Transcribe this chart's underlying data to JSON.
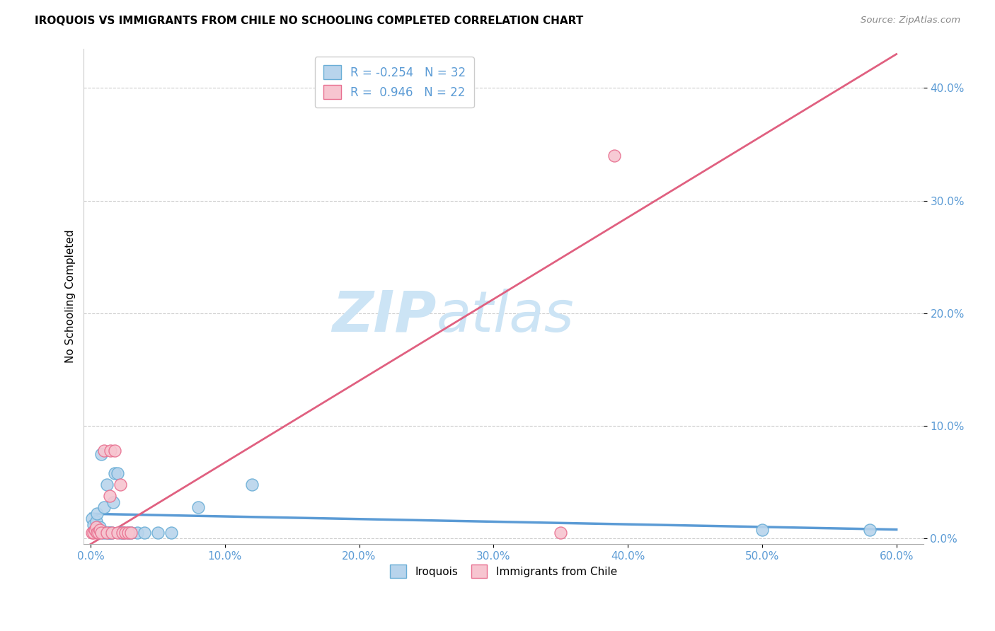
{
  "title": "IROQUOIS VS IMMIGRANTS FROM CHILE NO SCHOOLING COMPLETED CORRELATION CHART",
  "source": "Source: ZipAtlas.com",
  "ylabel": "No Schooling Completed",
  "xlim": [
    -0.005,
    0.62
  ],
  "ylim": [
    -0.005,
    0.435
  ],
  "xticks": [
    0.0,
    0.1,
    0.2,
    0.3,
    0.4,
    0.5,
    0.6
  ],
  "yticks": [
    0.0,
    0.1,
    0.2,
    0.3,
    0.4
  ],
  "legend_r1": "R = -0.254",
  "legend_n1": "N = 32",
  "legend_r2": "R =  0.946",
  "legend_n2": "N = 22",
  "blue_fill": "#b8d4ec",
  "blue_edge": "#6aaed6",
  "pink_fill": "#f7c5d0",
  "pink_edge": "#e87090",
  "blue_line": "#5b9bd5",
  "pink_line": "#e06080",
  "tick_color": "#5b9bd5",
  "grid_color": "#cccccc",
  "watermark_color": "#cce4f5",
  "iroquois_x": [
    0.001,
    0.002,
    0.003,
    0.004,
    0.005,
    0.006,
    0.007,
    0.008,
    0.009,
    0.01,
    0.011,
    0.012,
    0.013,
    0.014,
    0.015,
    0.016,
    0.017,
    0.018,
    0.02,
    0.022,
    0.024,
    0.025,
    0.028,
    0.03,
    0.035,
    0.04,
    0.05,
    0.06,
    0.08,
    0.12,
    0.5,
    0.58
  ],
  "iroquois_y": [
    0.018,
    0.012,
    0.008,
    0.015,
    0.022,
    0.005,
    0.01,
    0.075,
    0.005,
    0.028,
    0.005,
    0.048,
    0.005,
    0.005,
    0.005,
    0.005,
    0.032,
    0.058,
    0.058,
    0.005,
    0.005,
    0.005,
    0.005,
    0.005,
    0.005,
    0.005,
    0.005,
    0.005,
    0.028,
    0.048,
    0.008,
    0.008
  ],
  "chile_x": [
    0.001,
    0.002,
    0.003,
    0.004,
    0.005,
    0.006,
    0.007,
    0.008,
    0.01,
    0.012,
    0.014,
    0.015,
    0.016,
    0.018,
    0.02,
    0.022,
    0.024,
    0.026,
    0.028,
    0.03,
    0.35,
    0.39
  ],
  "chile_y": [
    0.005,
    0.005,
    0.008,
    0.01,
    0.005,
    0.005,
    0.008,
    0.005,
    0.078,
    0.005,
    0.038,
    0.078,
    0.005,
    0.078,
    0.005,
    0.048,
    0.005,
    0.005,
    0.005,
    0.005,
    0.005,
    0.34
  ],
  "blue_trend_x": [
    0.0,
    0.6
  ],
  "blue_trend_y": [
    0.022,
    0.008
  ],
  "pink_trend_x": [
    0.0,
    0.6
  ],
  "pink_trend_y": [
    -0.005,
    0.43
  ]
}
